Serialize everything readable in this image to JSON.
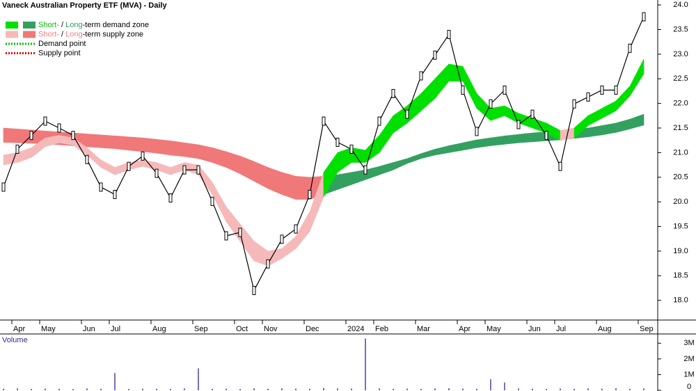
{
  "chart_data": {
    "type": "zone",
    "title": "Vaneck Australian Property ETF (MVA) - Daily",
    "legend_items": [
      {
        "parts": [
          {
            "text": "Short-",
            "color": "#00c000"
          },
          {
            "text": " / ",
            "color": "#000000"
          },
          {
            "text": "Long",
            "color": "#2e9e5e"
          },
          {
            "text": "-term demand zone",
            "color": "#000000"
          }
        ],
        "swatches": [
          "#00e000",
          "#33a060"
        ],
        "style": "box"
      },
      {
        "parts": [
          {
            "text": "Short-",
            "color": "#f08080"
          },
          {
            "text": " / ",
            "color": "#000000"
          },
          {
            "text": "Long",
            "color": "#f08080"
          },
          {
            "text": "-term supply zone",
            "color": "#000000"
          }
        ],
        "swatches": [
          "#f6b9b9",
          "#f07878"
        ],
        "style": "box"
      },
      {
        "parts": [
          {
            "text": "Demand point",
            "color": "#000000"
          }
        ],
        "swatches": [
          "#00c000"
        ],
        "style": "dots"
      },
      {
        "parts": [
          {
            "text": "Supply point",
            "color": "#000000"
          }
        ],
        "swatches": [
          "#e00000"
        ],
        "style": "dots"
      }
    ],
    "categories": [
      null,
      "Apr",
      null,
      "May",
      null,
      null,
      "Jun",
      null,
      "Jul",
      null,
      null,
      "Aug",
      null,
      null,
      "Sep",
      null,
      null,
      "Oct",
      null,
      "Nov",
      null,
      null,
      "Dec",
      null,
      null,
      "2024",
      null,
      "Feb",
      null,
      null,
      "Mar",
      null,
      null,
      "Apr",
      null,
      "May",
      null,
      null,
      "Jun",
      null,
      "Jul",
      null,
      null,
      "Aug",
      null,
      null,
      "Sep"
    ],
    "price": [
      20.3,
      21.07,
      21.35,
      21.64,
      21.5,
      21.35,
      20.86,
      20.3,
      20.15,
      20.72,
      20.93,
      20.58,
      20.08,
      20.65,
      20.65,
      20.01,
      19.31,
      19.38,
      18.2,
      18.74,
      19.24,
      19.45,
      20.15,
      21.64,
      21.21,
      21.07,
      20.65,
      21.64,
      22.2,
      21.78,
      22.56,
      22.98,
      23.4,
      22.27,
      21.43,
      21.99,
      22.27,
      21.57,
      21.78,
      21.35,
      20.72,
      21.99,
      22.13,
      22.27,
      22.27,
      23.12,
      23.76
    ],
    "short_term_zone": {
      "upper": [
        20.95,
        21.0,
        21.1,
        21.3,
        21.35,
        21.3,
        21.1,
        20.85,
        20.7,
        20.8,
        20.85,
        20.8,
        20.7,
        20.8,
        20.75,
        20.4,
        19.9,
        19.55,
        19.2,
        19.0,
        19.05,
        19.3,
        19.8,
        20.6,
        21.0,
        21.1,
        21.05,
        21.35,
        21.75,
        21.95,
        22.2,
        22.5,
        22.8,
        22.75,
        22.2,
        21.9,
        21.95,
        21.8,
        21.7,
        21.6,
        21.45,
        21.5,
        21.75,
        21.9,
        22.05,
        22.35,
        22.9
      ],
      "lower": [
        20.75,
        20.8,
        20.9,
        21.12,
        21.2,
        21.15,
        20.95,
        20.7,
        20.55,
        20.65,
        20.72,
        20.65,
        20.55,
        20.65,
        20.55,
        20.15,
        19.6,
        19.2,
        18.8,
        18.7,
        18.85,
        19.05,
        19.4,
        20.1,
        20.6,
        20.8,
        20.8,
        21.0,
        21.4,
        21.6,
        21.85,
        22.1,
        22.45,
        22.45,
        21.9,
        21.65,
        21.75,
        21.6,
        21.5,
        21.4,
        21.25,
        21.3,
        21.55,
        21.7,
        21.85,
        22.15,
        22.6
      ]
    },
    "long_term_zone": {
      "upper": [
        21.5,
        21.48,
        21.46,
        21.44,
        21.42,
        21.4,
        21.38,
        21.36,
        21.34,
        21.32,
        21.3,
        21.27,
        21.24,
        21.2,
        21.16,
        21.1,
        21.02,
        20.93,
        20.82,
        20.7,
        20.6,
        20.52,
        20.5,
        20.52,
        20.55,
        20.6,
        20.65,
        20.72,
        20.8,
        20.88,
        20.98,
        21.07,
        21.14,
        21.2,
        21.26,
        21.3,
        21.34,
        21.37,
        21.4,
        21.42,
        21.44,
        21.47,
        21.5,
        21.55,
        21.6,
        21.68,
        21.78
      ],
      "lower": [
        21.21,
        21.2,
        21.19,
        21.18,
        21.16,
        21.14,
        21.12,
        21.1,
        21.08,
        21.05,
        21.02,
        20.99,
        20.95,
        20.92,
        20.88,
        20.8,
        20.7,
        20.57,
        20.42,
        20.27,
        20.15,
        20.05,
        20.05,
        20.15,
        20.25,
        20.35,
        20.45,
        20.55,
        20.65,
        20.78,
        20.88,
        20.95,
        21.0,
        21.05,
        21.1,
        21.14,
        21.17,
        21.2,
        21.22,
        21.24,
        21.26,
        21.29,
        21.32,
        21.36,
        21.41,
        21.48,
        21.56
      ]
    },
    "zone_colors": {
      "short_demand": "#00e000",
      "short_supply": "#f6b9b9",
      "long_demand": "#33a060",
      "long_supply": "#f07878"
    },
    "price_color": "#000000",
    "ylim": [
      17.6,
      24.1
    ],
    "yticks": [
      {
        "value": 18,
        "label": "18.0"
      },
      {
        "value": 18.5,
        "label": "18.5"
      },
      {
        "value": 19,
        "label": "19.0"
      },
      {
        "value": 19.5,
        "label": "19.5"
      },
      {
        "value": 20,
        "label": "20.0"
      },
      {
        "value": 20.5,
        "label": "20.5"
      },
      {
        "value": 21,
        "label": "21.0"
      },
      {
        "value": 21.5,
        "label": "21.5"
      },
      {
        "value": 22,
        "label": "22.0"
      },
      {
        "value": 22.5,
        "label": "22.5"
      },
      {
        "value": 23,
        "label": "23.0"
      },
      {
        "value": 23.5,
        "label": "23.5"
      },
      {
        "value": 24,
        "label": "24.0"
      }
    ],
    "volume": {
      "label": "Volume",
      "color": "#4b3fa8",
      "values": [
        100000,
        120000,
        90000,
        110000,
        100000,
        80000,
        120000,
        100000,
        1100000,
        90000,
        110000,
        100000,
        90000,
        120000,
        1400000,
        100000,
        110000,
        90000,
        130000,
        100000,
        120000,
        110000,
        100000,
        150000,
        120000,
        110000,
        3300000,
        120000,
        100000,
        110000,
        90000,
        120000,
        130000,
        110000,
        100000,
        700000,
        500000,
        120000,
        100000,
        90000,
        110000,
        100000,
        120000,
        110000,
        130000,
        100000,
        120000
      ],
      "ylim": [
        0,
        3500000
      ],
      "yticks": [
        0,
        {
          "value": 1000000,
          "label": "1M"
        },
        {
          "value": 2000000,
          "label": "2M"
        },
        {
          "value": 3000000,
          "label": "3M"
        }
      ]
    }
  }
}
